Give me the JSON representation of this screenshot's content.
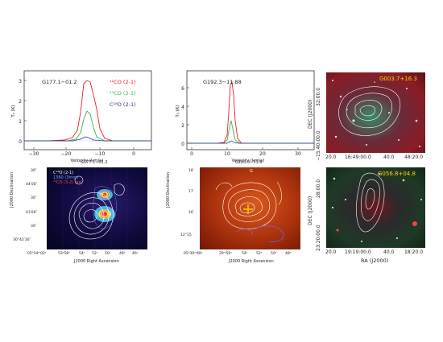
{
  "figure": {
    "spectrum_left": {
      "source_label": "G177.1−01.2",
      "ylabel": "Tₐ (K)",
      "xlabel": "Velocity (km/s)",
      "legend": [
        "¹²CO (2-1)",
        "¹³CO (2-1)",
        "C¹⁸O (2-1)"
      ],
      "legend_colors": [
        "#e8202a",
        "#39b54a",
        "#2e3192"
      ],
      "xticks": [
        "−30",
        "−20",
        "−10",
        "0"
      ],
      "yticks": [
        "0",
        "1",
        "2",
        "3"
      ]
    },
    "spectrum_mid": {
      "source_label": "G192.3−11.88",
      "ylabel": "Tₐ (K)",
      "xlabel": "Velocity (km/s)",
      "xticks": [
        "0",
        "10",
        "20",
        "30"
      ],
      "yticks": [
        "0",
        "2",
        "4",
        "6"
      ]
    },
    "map_left": {
      "title": "G177.1−01.2",
      "legend": [
        "C¹⁸O (2-1)",
        "1380 (3mm)",
        "¹³CO (3-2) red"
      ],
      "legend_colors": [
        "#ffffff",
        "#7f9fff",
        "#ff5050"
      ],
      "ylabel": "J2000 Declination",
      "xlabel": "J2000 Right Ascension",
      "yticks": [
        "30″",
        "44′00″",
        "30″",
        "43′00″",
        "30″",
        "30°42′30″"
      ],
      "xticks": [
        "05ʰ34ᵐ02ˢ",
        "53ˢ58ˢ",
        "54ˢ",
        "52ˢ",
        "50ˢ",
        "48ˢ",
        "46ˢ"
      ]
    },
    "map_mid": {
      "title": "G180.3−11.8",
      "ylabel": "J2000 Declination",
      "xlabel": "J2000 Right Ascension",
      "yticks": [
        "18′",
        "17′",
        "16′",
        "12°15′"
      ],
      "xticks": [
        "05ʰ30ᵐ60ˢ",
        "29ᵐ56ˢ",
        "54ˢ",
        "52ˢ",
        "50ˢ",
        "48ˢ"
      ],
      "marker": "G"
    },
    "map_right_top": {
      "label": "G003.7+16.3",
      "ylabel": "DEC (J2000)",
      "yticks": [
        "32:00.0",
        "−15:40:00.0"
      ],
      "xticks": [
        "20.0",
        "16:49:00.0",
        "40.0",
        "48:20.0"
      ]
    },
    "map_right_bottom": {
      "label": "G056.8+04.8",
      "ylabel": "DEC (J2000)",
      "yticks": [
        "28:00.0",
        "23:20:00.0"
      ],
      "xticks": [
        "20.0",
        "19:19:00.0",
        "40.0",
        "18:20.0"
      ],
      "xlabel": "RA (J2000)"
    }
  }
}
